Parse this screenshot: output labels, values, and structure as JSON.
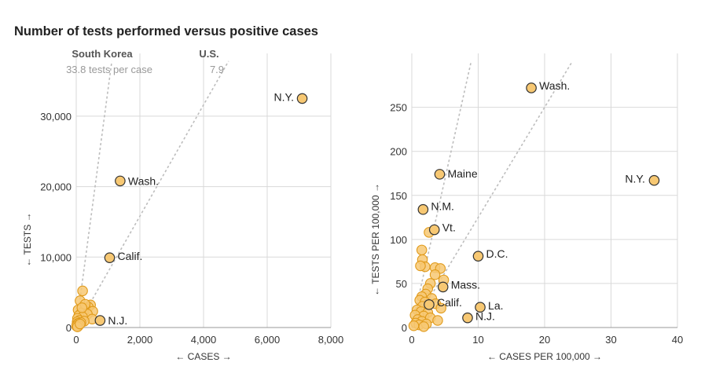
{
  "title": "Number of tests performed versus positive cases",
  "colors": {
    "point_fill": "#f7c873",
    "point_stroke": "#e09a1a",
    "labeled_stroke": "#333333",
    "grid": "#d9d9d9",
    "ref_line": "#bdbdbd",
    "ref_text": "#777777"
  },
  "chart_data": [
    {
      "type": "scatter",
      "xlabel": "← CASES →",
      "ylabel": "← TESTS →",
      "xlim": [
        0,
        8000
      ],
      "ylim": [
        0,
        35000
      ],
      "xticks": [
        0,
        2000,
        4000,
        6000,
        8000
      ],
      "xtick_labels": [
        "0",
        "2,000",
        "4,000",
        "6,000",
        "8,000"
      ],
      "yticks": [
        0,
        10000,
        20000,
        30000
      ],
      "ytick_labels": [
        "0",
        "10,000",
        "20,000",
        "30,000"
      ],
      "reference_lines": [
        {
          "label": "South Korea",
          "sublabel": "33.8 tests per case",
          "slope": 33.8
        },
        {
          "label": "U.S.",
          "sublabel": "7.9",
          "slope": 7.9
        }
      ],
      "labeled_points": [
        {
          "name": "N.Y.",
          "x": 7100,
          "y": 32500
        },
        {
          "name": "Wash.",
          "x": 1380,
          "y": 20800
        },
        {
          "name": "Calif.",
          "x": 1050,
          "y": 9900
        },
        {
          "name": "N.J.",
          "x": 750,
          "y": 1000
        }
      ],
      "points": [
        {
          "x": 200,
          "y": 5200
        },
        {
          "x": 120,
          "y": 3800
        },
        {
          "x": 450,
          "y": 3200
        },
        {
          "x": 380,
          "y": 2900
        },
        {
          "x": 300,
          "y": 2700
        },
        {
          "x": 60,
          "y": 2500
        },
        {
          "x": 250,
          "y": 2400
        },
        {
          "x": 520,
          "y": 2300
        },
        {
          "x": 150,
          "y": 2000
        },
        {
          "x": 350,
          "y": 1900
        },
        {
          "x": 80,
          "y": 1700
        },
        {
          "x": 200,
          "y": 1500
        },
        {
          "x": 40,
          "y": 1300
        },
        {
          "x": 500,
          "y": 1200
        },
        {
          "x": 100,
          "y": 1000
        },
        {
          "x": 250,
          "y": 900
        },
        {
          "x": 30,
          "y": 800
        },
        {
          "x": 150,
          "y": 700
        },
        {
          "x": 60,
          "y": 600
        },
        {
          "x": 20,
          "y": 400
        },
        {
          "x": 80,
          "y": 300
        },
        {
          "x": 10,
          "y": 200
        },
        {
          "x": 40,
          "y": 100
        },
        {
          "x": 120,
          "y": 500
        },
        {
          "x": 280,
          "y": 3300
        },
        {
          "x": 180,
          "y": 2800
        }
      ]
    },
    {
      "type": "scatter",
      "xlabel": "← CASES PER 100,000 →",
      "ylabel": "← TESTS PER 100,000 →",
      "xlim": [
        0,
        40
      ],
      "ylim": [
        0,
        280
      ],
      "xticks": [
        0,
        10,
        20,
        30,
        40
      ],
      "xtick_labels": [
        "0",
        "10",
        "20",
        "30",
        "40"
      ],
      "yticks": [
        0,
        50,
        100,
        150,
        200,
        250
      ],
      "ytick_labels": [
        "0",
        "50",
        "100",
        "150",
        "200",
        "250"
      ],
      "reference_lines": [
        {
          "label": "",
          "sublabel": "",
          "slope": 33.8
        },
        {
          "label": "",
          "sublabel": "",
          "slope": 12.5
        }
      ],
      "labeled_points": [
        {
          "name": "Wash.",
          "x": 18,
          "y": 272
        },
        {
          "name": "N.Y.",
          "x": 36.5,
          "y": 167
        },
        {
          "name": "Maine",
          "x": 4.2,
          "y": 174
        },
        {
          "name": "N.M.",
          "x": 1.7,
          "y": 134
        },
        {
          "name": "Vt.",
          "x": 3.4,
          "y": 111
        },
        {
          "name": "D.C.",
          "x": 10,
          "y": 81
        },
        {
          "name": "Mass.",
          "x": 4.7,
          "y": 46
        },
        {
          "name": "Calif.",
          "x": 2.6,
          "y": 26
        },
        {
          "name": "La.",
          "x": 10.3,
          "y": 23
        },
        {
          "name": "N.J.",
          "x": 8.4,
          "y": 11
        }
      ],
      "points": [
        {
          "x": 2.6,
          "y": 108
        },
        {
          "x": 1.5,
          "y": 88
        },
        {
          "x": 1.6,
          "y": 77
        },
        {
          "x": 2.0,
          "y": 69
        },
        {
          "x": 3.5,
          "y": 68
        },
        {
          "x": 4.3,
          "y": 67
        },
        {
          "x": 1.3,
          "y": 70
        },
        {
          "x": 3.5,
          "y": 60
        },
        {
          "x": 4.8,
          "y": 54
        },
        {
          "x": 2.8,
          "y": 50
        },
        {
          "x": 2.4,
          "y": 44
        },
        {
          "x": 2.1,
          "y": 38
        },
        {
          "x": 1.5,
          "y": 35
        },
        {
          "x": 3.0,
          "y": 33
        },
        {
          "x": 1.2,
          "y": 31
        },
        {
          "x": 2.0,
          "y": 29
        },
        {
          "x": 1.6,
          "y": 24
        },
        {
          "x": 3.6,
          "y": 27
        },
        {
          "x": 4.4,
          "y": 22
        },
        {
          "x": 0.8,
          "y": 20
        },
        {
          "x": 1.4,
          "y": 18
        },
        {
          "x": 2.4,
          "y": 17
        },
        {
          "x": 0.5,
          "y": 14
        },
        {
          "x": 1.8,
          "y": 13
        },
        {
          "x": 2.8,
          "y": 11
        },
        {
          "x": 0.9,
          "y": 9
        },
        {
          "x": 1.5,
          "y": 7
        },
        {
          "x": 3.9,
          "y": 8
        },
        {
          "x": 0.6,
          "y": 5
        },
        {
          "x": 1.1,
          "y": 3
        },
        {
          "x": 2.2,
          "y": 4
        },
        {
          "x": 0.3,
          "y": 2
        },
        {
          "x": 1.8,
          "y": 1
        }
      ]
    }
  ]
}
